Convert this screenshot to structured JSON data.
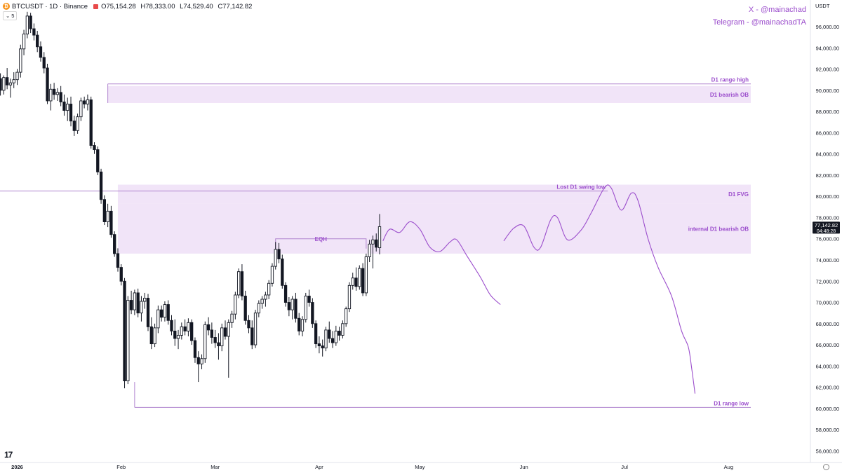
{
  "header": {
    "symbol": "BTCUSDT · 1D · Binance",
    "open": "O75,154.28",
    "high": "H78,333.00",
    "low": "L74,529.40",
    "close": "C77,142.82",
    "indicator_count": "5"
  },
  "social": {
    "x": "X - @mainachad",
    "telegram": "Telegram - @mainachadTA"
  },
  "price_axis": {
    "currency": "USDT"
  },
  "colors": {
    "zone": "#e9d5f5",
    "line": "#b184cf",
    "label": "#9b4dcc",
    "candle": "#131722"
  },
  "chart_data": {
    "type": "candlestick",
    "ylim": [
      54500,
      97500
    ],
    "price_ticks": [
      96000,
      94000,
      92000,
      90000,
      88000,
      86000,
      84000,
      82000,
      80000,
      78000,
      76000,
      74000,
      72000,
      70000,
      68000,
      66000,
      64000,
      62000,
      60000,
      58000,
      56000
    ],
    "x_ticks": [
      {
        "label": "2026",
        "date": "2026-01-01"
      },
      {
        "label": "Feb",
        "date": "2026-02-01"
      },
      {
        "label": "Mar",
        "date": "2026-03-01"
      },
      {
        "label": "Apr",
        "date": "2026-04-01"
      },
      {
        "label": "May",
        "date": "2026-05-01"
      },
      {
        "label": "Jun",
        "date": "2026-06-01"
      },
      {
        "label": "Jul",
        "date": "2026-07-01"
      },
      {
        "label": "Aug",
        "date": "2026-08-01"
      }
    ],
    "last_price": "77,142.82",
    "countdown": "04:48:28",
    "zones": [
      {
        "name": "D1 bearish OB",
        "from": 88800,
        "to": 90400,
        "start": "2026-01-28"
      },
      {
        "name": "D1 FVG",
        "from": 79300,
        "to": 81100,
        "start": "2026-01-31"
      },
      {
        "name": "internal D1 bearish OB",
        "from": 74600,
        "to": 79300,
        "start": "2026-01-31"
      }
    ],
    "levels": [
      {
        "name": "D1 range high",
        "price": 90600,
        "start": "2026-01-28"
      },
      {
        "name": "Lost D1 swing low",
        "price": 80500,
        "start": "2025-12-10",
        "end": "2026-06-26"
      },
      {
        "name": "D1 range low",
        "price": 60100,
        "start": "2026-02-05"
      }
    ],
    "eqh": {
      "label": "EQH",
      "price": 76000,
      "start": "2026-03-19",
      "end": "2026-04-15"
    },
    "candles": [
      [
        "2025-12-10",
        86900,
        87800,
        86400,
        87300
      ],
      [
        "2025-12-11",
        87300,
        88400,
        86800,
        88000
      ],
      [
        "2025-12-12",
        88000,
        88500,
        87000,
        87400
      ],
      [
        "2025-12-13",
        87400,
        87900,
        86600,
        87100
      ],
      [
        "2025-12-14",
        87100,
        88600,
        86900,
        88300
      ],
      [
        "2025-12-15",
        88300,
        89300,
        87600,
        88600
      ],
      [
        "2025-12-16",
        88600,
        89000,
        87800,
        88100
      ],
      [
        "2025-12-17",
        88100,
        89600,
        87900,
        89400
      ],
      [
        "2025-12-18",
        89400,
        90600,
        89100,
        90300
      ],
      [
        "2025-12-19",
        90300,
        91300,
        89600,
        90000
      ],
      [
        "2025-12-20",
        90000,
        90600,
        89100,
        89500
      ],
      [
        "2025-12-21",
        89500,
        91400,
        89000,
        91100
      ],
      [
        "2025-12-22",
        91100,
        92800,
        90700,
        92500
      ],
      [
        "2025-12-23",
        92500,
        94200,
        91900,
        93800
      ],
      [
        "2025-12-24",
        93800,
        94700,
        92100,
        92600
      ],
      [
        "2025-12-25",
        92600,
        93600,
        91600,
        93200
      ],
      [
        "2025-12-26",
        93200,
        93700,
        90600,
        91100
      ],
      [
        "2025-12-27",
        91100,
        91600,
        89500,
        90000
      ],
      [
        "2025-12-28",
        90000,
        91400,
        89600,
        91200
      ],
      [
        "2025-12-29",
        91200,
        92100,
        90100,
        90500
      ],
      [
        "2025-12-30",
        90500,
        91100,
        89300,
        90700
      ],
      [
        "2025-12-31",
        90700,
        91700,
        90200,
        91000
      ],
      [
        "2026-01-01",
        91000,
        92000,
        90500,
        91700
      ],
      [
        "2026-01-02",
        91700,
        94300,
        91200,
        93900
      ],
      [
        "2026-01-03",
        93900,
        95700,
        93300,
        95300
      ],
      [
        "2026-01-04",
        95300,
        97400,
        94900,
        97000
      ],
      [
        "2026-01-05",
        97000,
        97300,
        95400,
        95800
      ],
      [
        "2026-01-06",
        95800,
        96300,
        94700,
        95200
      ],
      [
        "2026-01-07",
        95200,
        95600,
        93600,
        94100
      ],
      [
        "2026-01-08",
        94100,
        94600,
        92700,
        93100
      ],
      [
        "2026-01-09",
        93100,
        93600,
        91600,
        92100
      ],
      [
        "2026-01-10",
        92100,
        92500,
        88700,
        89000
      ],
      [
        "2026-01-11",
        89000,
        90600,
        88100,
        90100
      ],
      [
        "2026-01-12",
        90100,
        90700,
        89100,
        89600
      ],
      [
        "2026-01-13",
        89600,
        90200,
        89000,
        89800
      ],
      [
        "2026-01-14",
        89800,
        90400,
        88500,
        88900
      ],
      [
        "2026-01-15",
        88900,
        89600,
        87600,
        88100
      ],
      [
        "2026-01-16",
        88100,
        89300,
        87100,
        88700
      ],
      [
        "2026-01-17",
        88700,
        89400,
        86600,
        87100
      ],
      [
        "2026-01-18",
        87100,
        87600,
        85700,
        86200
      ],
      [
        "2026-01-19",
        86200,
        87800,
        85900,
        87500
      ],
      [
        "2026-01-20",
        87500,
        89300,
        87100,
        89000
      ],
      [
        "2026-01-21",
        89000,
        89400,
        88300,
        88700
      ],
      [
        "2026-01-22",
        88700,
        89600,
        88100,
        89100
      ],
      [
        "2026-01-23",
        89100,
        89400,
        84500,
        84800
      ],
      [
        "2026-01-24",
        84800,
        85100,
        84000,
        84400
      ],
      [
        "2026-01-25",
        84400,
        84700,
        82000,
        82300
      ],
      [
        "2026-01-26",
        82300,
        82600,
        79300,
        79700
      ],
      [
        "2026-01-27",
        79700,
        80100,
        77300,
        77600
      ],
      [
        "2026-01-28",
        77600,
        79300,
        77100,
        78600
      ],
      [
        "2026-01-29",
        78600,
        79100,
        76100,
        76400
      ],
      [
        "2026-01-30",
        76400,
        76700,
        74300,
        74600
      ],
      [
        "2026-01-31",
        74600,
        75100,
        72900,
        73300
      ],
      [
        "2026-02-01",
        73300,
        73600,
        71600,
        72000
      ],
      [
        "2026-02-02",
        72000,
        72300,
        61900,
        62600
      ],
      [
        "2026-02-03",
        62600,
        70600,
        62300,
        70200
      ],
      [
        "2026-02-04",
        70200,
        71100,
        68900,
        69300
      ],
      [
        "2026-02-05",
        69300,
        71200,
        68800,
        70900
      ],
      [
        "2026-02-06",
        70900,
        71300,
        68600,
        69000
      ],
      [
        "2026-02-07",
        69000,
        70600,
        68200,
        70100
      ],
      [
        "2026-02-08",
        70100,
        70900,
        69400,
        70400
      ],
      [
        "2026-02-09",
        70400,
        70800,
        67300,
        67700
      ],
      [
        "2026-02-10",
        67700,
        68600,
        65600,
        66100
      ],
      [
        "2026-02-11",
        66100,
        68000,
        65800,
        67600
      ],
      [
        "2026-02-12",
        67600,
        69700,
        67100,
        69300
      ],
      [
        "2026-02-13",
        69300,
        69700,
        68200,
        68600
      ],
      [
        "2026-02-14",
        68600,
        70100,
        68200,
        69800
      ],
      [
        "2026-02-15",
        69800,
        70200,
        67900,
        68300
      ],
      [
        "2026-02-16",
        68300,
        68800,
        66900,
        67300
      ],
      [
        "2026-02-17",
        67300,
        68400,
        65900,
        66600
      ],
      [
        "2026-02-18",
        66600,
        67400,
        65600,
        66900
      ],
      [
        "2026-02-19",
        66900,
        68100,
        66500,
        67700
      ],
      [
        "2026-02-20",
        67700,
        68400,
        66900,
        67300
      ],
      [
        "2026-02-21",
        67300,
        68500,
        66800,
        68100
      ],
      [
        "2026-02-22",
        68100,
        68400,
        66000,
        66400
      ],
      [
        "2026-02-23",
        66400,
        66700,
        64300,
        64800
      ],
      [
        "2026-02-24",
        64800,
        65400,
        62500,
        64200
      ],
      [
        "2026-02-25",
        64200,
        65100,
        63700,
        64700
      ],
      [
        "2026-02-26",
        64700,
        68200,
        64300,
        67900
      ],
      [
        "2026-02-27",
        67900,
        68600,
        66900,
        67400
      ],
      [
        "2026-02-28",
        67400,
        68100,
        66100,
        66700
      ],
      [
        "2026-03-01",
        66700,
        67400,
        65700,
        66200
      ],
      [
        "2026-03-02",
        66200,
        67100,
        64600,
        65900
      ],
      [
        "2026-03-03",
        65900,
        68000,
        65400,
        67600
      ],
      [
        "2026-03-04",
        67600,
        68300,
        66500,
        66800
      ],
      [
        "2026-03-05",
        66800,
        68400,
        62900,
        68100
      ],
      [
        "2026-03-06",
        68100,
        69200,
        67600,
        68900
      ],
      [
        "2026-03-07",
        68900,
        71000,
        68400,
        70700
      ],
      [
        "2026-03-08",
        70700,
        73200,
        70400,
        72900
      ],
      [
        "2026-03-09",
        72900,
        73600,
        70200,
        70600
      ],
      [
        "2026-03-10",
        70600,
        71100,
        67900,
        68300
      ],
      [
        "2026-03-11",
        68300,
        68800,
        67100,
        67600
      ],
      [
        "2026-03-12",
        67600,
        68300,
        65600,
        66000
      ],
      [
        "2026-03-13",
        66000,
        69300,
        65700,
        69000
      ],
      [
        "2026-03-14",
        69000,
        70200,
        68600,
        69900
      ],
      [
        "2026-03-15",
        69900,
        70600,
        69400,
        70300
      ],
      [
        "2026-03-16",
        70300,
        71000,
        69600,
        70700
      ],
      [
        "2026-03-17",
        70700,
        72100,
        70300,
        71800
      ],
      [
        "2026-03-18",
        71800,
        73700,
        71500,
        73400
      ],
      [
        "2026-03-19",
        73400,
        75700,
        73100,
        75000
      ],
      [
        "2026-03-20",
        75000,
        75600,
        73700,
        74100
      ],
      [
        "2026-03-21",
        74100,
        74500,
        71300,
        71600
      ],
      [
        "2026-03-22",
        71600,
        71900,
        69600,
        70000
      ],
      [
        "2026-03-23",
        70000,
        70500,
        68700,
        69300
      ],
      [
        "2026-03-24",
        69300,
        70600,
        68400,
        70300
      ],
      [
        "2026-03-25",
        70300,
        70900,
        68100,
        68500
      ],
      [
        "2026-03-26",
        68500,
        69000,
        66900,
        67300
      ],
      [
        "2026-03-27",
        67300,
        68700,
        66800,
        68400
      ],
      [
        "2026-03-28",
        68400,
        70900,
        68100,
        70600
      ],
      [
        "2026-03-29",
        70600,
        71200,
        69600,
        70000
      ],
      [
        "2026-03-30",
        70000,
        70400,
        67600,
        68000
      ],
      [
        "2026-03-31",
        68000,
        68300,
        65700,
        66100
      ],
      [
        "2026-04-01",
        66100,
        66800,
        65200,
        65900
      ],
      [
        "2026-04-02",
        65900,
        66500,
        64900,
        65700
      ],
      [
        "2026-04-03",
        65700,
        67700,
        65400,
        67400
      ],
      [
        "2026-04-04",
        67400,
        68200,
        66200,
        66600
      ],
      [
        "2026-04-05",
        66600,
        67300,
        65700,
        66200
      ],
      [
        "2026-04-06",
        66200,
        67800,
        65900,
        67300
      ],
      [
        "2026-04-07",
        67300,
        67700,
        66400,
        66900
      ],
      [
        "2026-04-08",
        66900,
        68300,
        66600,
        68000
      ],
      [
        "2026-04-09",
        68000,
        69600,
        67700,
        69400
      ],
      [
        "2026-04-10",
        69400,
        71900,
        69100,
        71600
      ],
      [
        "2026-04-11",
        71600,
        72800,
        71200,
        72300
      ],
      [
        "2026-04-12",
        72300,
        73300,
        71100,
        71500
      ],
      [
        "2026-04-13",
        71500,
        73500,
        71200,
        73200
      ],
      [
        "2026-04-14",
        73200,
        73700,
        70600,
        70900
      ],
      [
        "2026-04-15",
        70900,
        74600,
        70600,
        74300
      ],
      [
        "2026-04-16",
        74300,
        75900,
        73800,
        75500
      ],
      [
        "2026-04-17",
        75500,
        76300,
        73200,
        75900
      ],
      [
        "2026-04-18",
        75900,
        76500,
        74800,
        75200
      ],
      [
        "2026-04-19",
        75154.28,
        78333,
        74529.4,
        77142.82
      ]
    ],
    "projection_1": [
      [
        "2026-04-20",
        75800
      ],
      [
        "2026-04-22",
        76900
      ],
      [
        "2026-04-25",
        76600
      ],
      [
        "2026-04-28",
        77600
      ],
      [
        "2026-05-01",
        76900
      ],
      [
        "2026-05-04",
        75200
      ],
      [
        "2026-05-07",
        74800
      ],
      [
        "2026-05-10",
        75700
      ],
      [
        "2026-05-12",
        75900
      ],
      [
        "2026-05-15",
        74400
      ],
      [
        "2026-05-19",
        72400
      ],
      [
        "2026-05-22",
        70700
      ],
      [
        "2026-05-25",
        69800
      ]
    ],
    "projection_2": [
      [
        "2026-05-26",
        75800
      ],
      [
        "2026-05-29",
        77000
      ],
      [
        "2026-06-01",
        77200
      ],
      [
        "2026-06-04",
        75200
      ],
      [
        "2026-06-06",
        75200
      ],
      [
        "2026-06-09",
        77800
      ],
      [
        "2026-06-11",
        78000
      ],
      [
        "2026-06-14",
        75900
      ],
      [
        "2026-06-18",
        76800
      ],
      [
        "2026-06-21",
        78400
      ],
      [
        "2026-06-25",
        80800
      ],
      [
        "2026-06-27",
        80800
      ],
      [
        "2026-06-30",
        78700
      ],
      [
        "2026-07-03",
        80300
      ],
      [
        "2026-07-05",
        79600
      ],
      [
        "2026-07-08",
        76000
      ],
      [
        "2026-07-11",
        73300
      ],
      [
        "2026-07-15",
        70600
      ],
      [
        "2026-07-18",
        67300
      ],
      [
        "2026-07-20",
        65800
      ],
      [
        "2026-07-21",
        63800
      ],
      [
        "2026-07-22",
        61400
      ]
    ]
  }
}
